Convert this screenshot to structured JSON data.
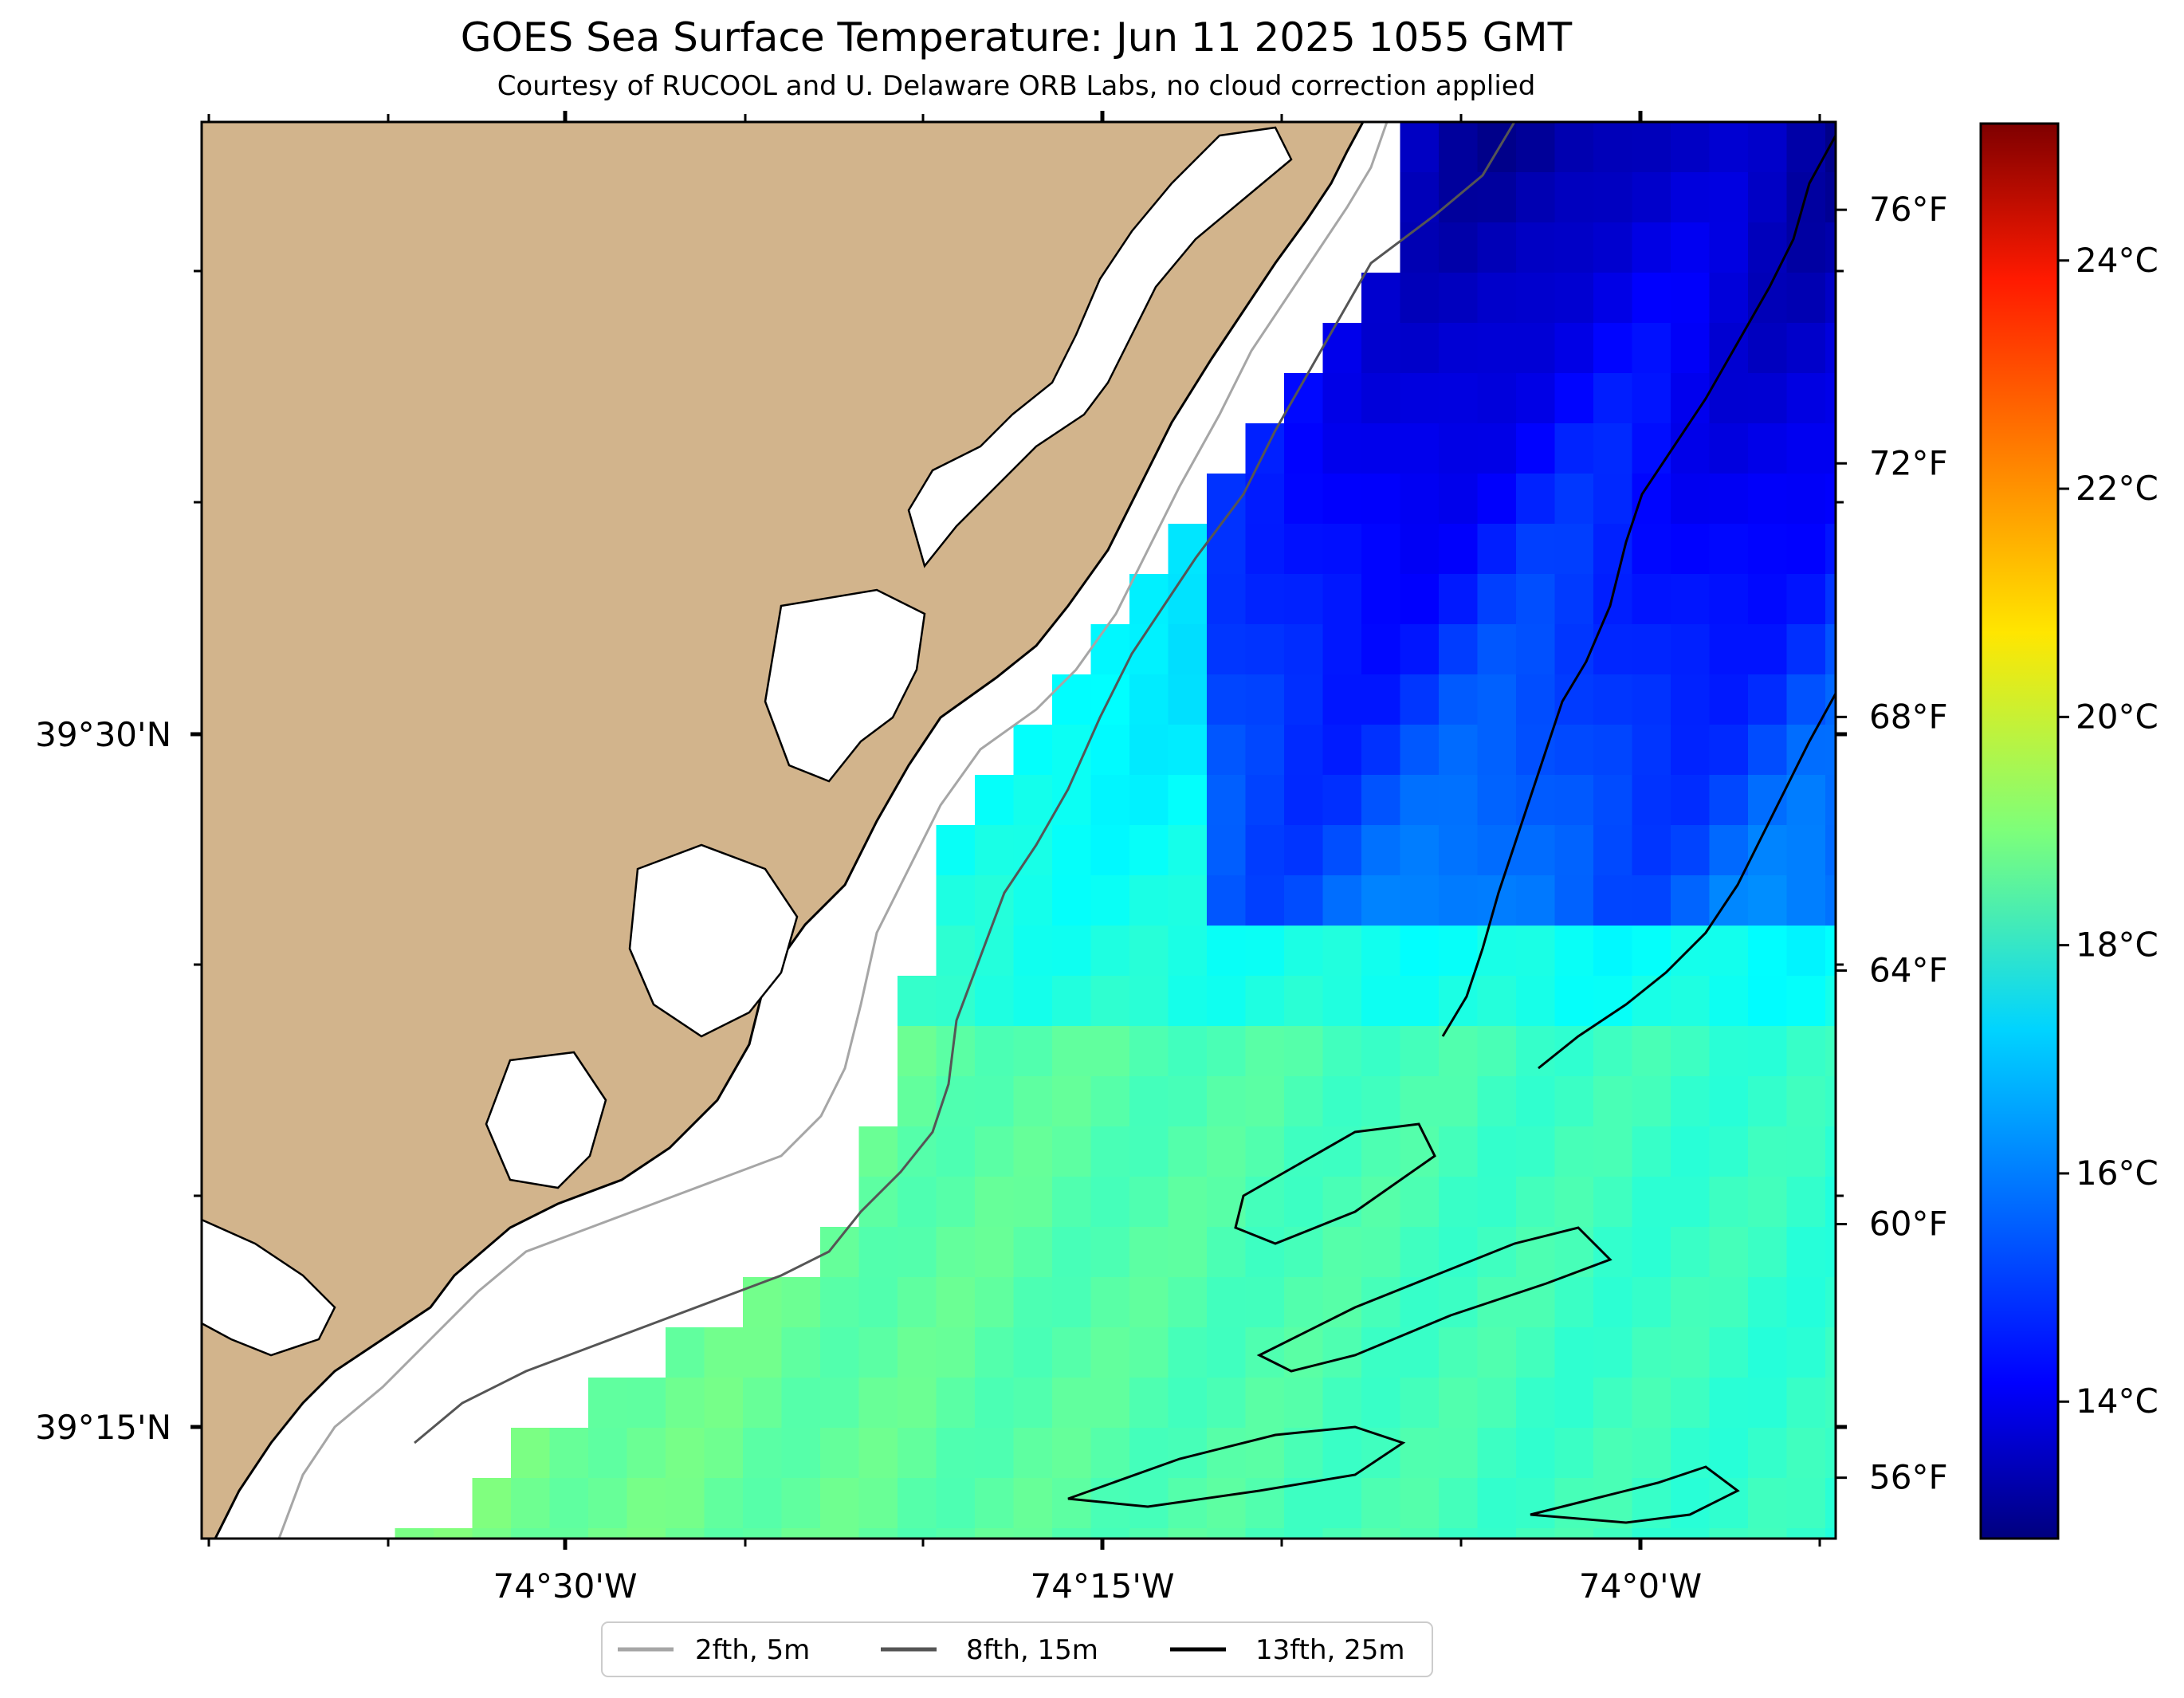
{
  "title": "GOES Sea Surface Temperature: Jun 11 2025 1055 GMT",
  "subtitle": "Courtesy of RUCOOL and U. Delaware ORB Labs, no cloud correction applied",
  "axes": {
    "lon_labels": [
      "74°30'W",
      "74°15'W",
      "74°0'W"
    ],
    "lat_labels": [
      "39°30'N",
      "39°15'N"
    ]
  },
  "colorbar": {
    "fahrenheit_labels": [
      "76°F",
      "72°F",
      "68°F",
      "64°F",
      "60°F",
      "56°F"
    ],
    "celsius_labels": [
      "24°C",
      "22°C",
      "20°C",
      "18°C",
      "16°C",
      "14°C"
    ],
    "min_c": 12.8,
    "max_c": 25.2
  },
  "legend": [
    {
      "label": "2fth, 5m",
      "color": "#a6a6a6"
    },
    {
      "label": "8fth, 15m",
      "color": "#555555"
    },
    {
      "label": "13fth, 25m",
      "color": "#000000"
    }
  ],
  "colors": {
    "land": "#d2b48c",
    "coastline": "#000000",
    "background": "#ffffff"
  }
}
